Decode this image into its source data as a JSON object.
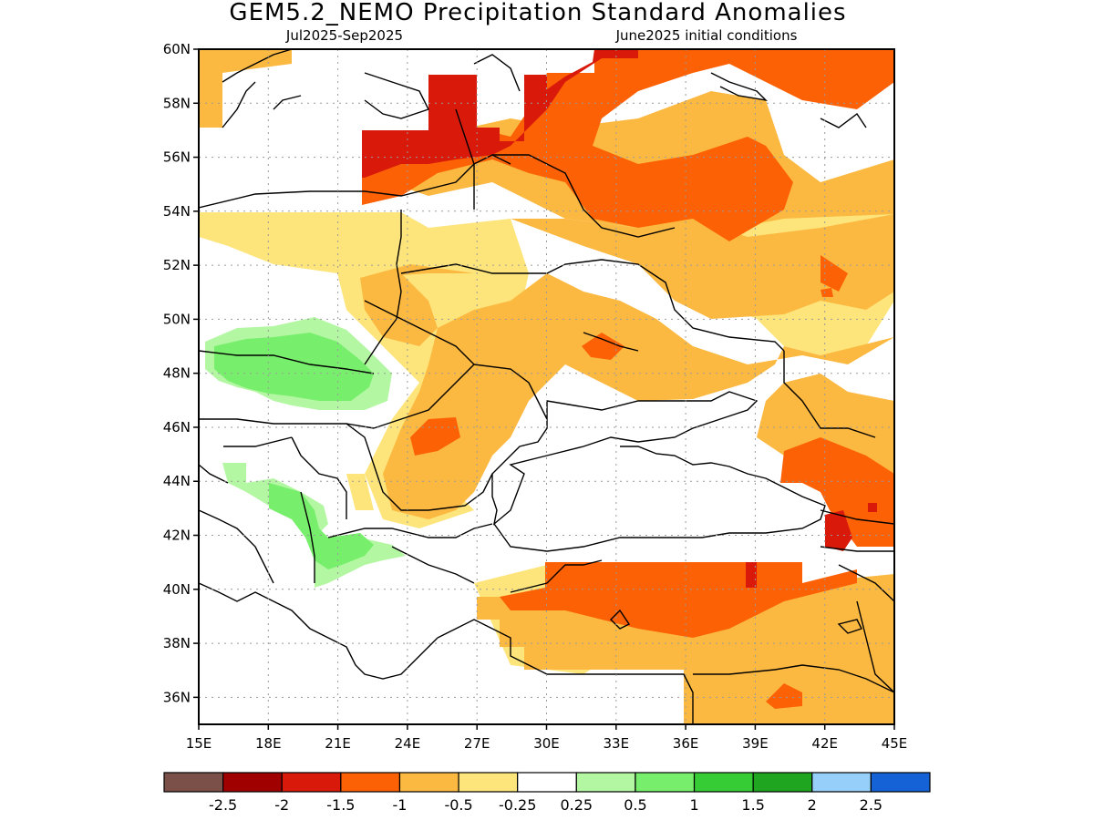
{
  "title": "GEM5.2_NEMO Precipitation Standard Anomalies",
  "subtitle_left": "Jul2025-Sep2025",
  "subtitle_right": "June2025 initial conditions",
  "chart_data": {
    "type": "heatmap",
    "variable": "Precipitation Standard Anomalies",
    "model": "GEM5.2_NEMO",
    "period": "Jul2025-Sep2025",
    "initial_conditions": "June2025",
    "lon_range": [
      15,
      45
    ],
    "lat_range": [
      35,
      60
    ],
    "x_ticks": [
      "15E",
      "18E",
      "21E",
      "24E",
      "27E",
      "30E",
      "33E",
      "36E",
      "39E",
      "42E",
      "45E"
    ],
    "x_tick_values": [
      15,
      18,
      21,
      24,
      27,
      30,
      33,
      36,
      39,
      42,
      45
    ],
    "y_ticks": [
      "36N",
      "38N",
      "40N",
      "42N",
      "44N",
      "46N",
      "48N",
      "50N",
      "52N",
      "54N",
      "56N",
      "58N",
      "60N"
    ],
    "y_tick_values": [
      36,
      38,
      40,
      42,
      44,
      46,
      48,
      50,
      52,
      54,
      56,
      58,
      60
    ],
    "grid": true,
    "colorbar": {
      "boundaries": [
        "-2.5",
        "-2",
        "-1.5",
        "-1",
        "-0.5",
        "-0.25",
        "0.25",
        "0.5",
        "1",
        "1.5",
        "2",
        "2.5"
      ],
      "colors": [
        "#7a5048",
        "#a10000",
        "#d91a0a",
        "#fc6106",
        "#fcb941",
        "#fde57c",
        "#ffffff",
        "#b3f7a3",
        "#78ef6c",
        "#36cc36",
        "#1fa51f",
        "#96d0fa",
        "#1562d6"
      ]
    },
    "regions": [
      {
        "category": "-1.5 to -1",
        "lon": [
          31,
          45
        ],
        "lat": [
          53.5,
          60
        ]
      },
      {
        "category": "-2 to -1.5",
        "lon": [
          22,
          30
        ],
        "lat": [
          56,
          59
        ]
      },
      {
        "category": "-1 to -0.5",
        "lon": [
          22,
          45
        ],
        "lat": [
          46,
          54
        ]
      },
      {
        "category": "-0.5 to -0.25",
        "lon": [
          15,
          31
        ],
        "lat": [
          50,
          54
        ]
      },
      {
        "category": "0.25 to 1",
        "lon": [
          15.5,
          23
        ],
        "lat": [
          47,
          49.5
        ]
      },
      {
        "category": "0.25 to 1",
        "lon": [
          19,
          24
        ],
        "lat": [
          40,
          42
        ]
      },
      {
        "category": "-1.5 to -1",
        "lon": [
          30,
          41
        ],
        "lat": [
          39,
          41
        ]
      },
      {
        "category": "-1 to -0.5",
        "lon": [
          27,
          45
        ],
        "lat": [
          35,
          40
        ]
      },
      {
        "category": "-1.5 to -1",
        "lon": [
          40.5,
          45
        ],
        "lat": [
          41,
          45
        ]
      }
    ]
  }
}
